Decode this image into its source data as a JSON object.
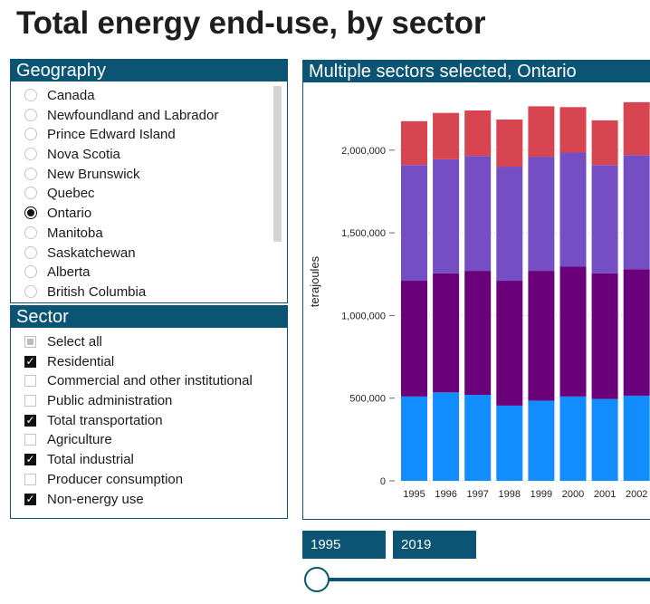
{
  "page": {
    "title": "Total energy end-use, by sector"
  },
  "geography": {
    "header": "Geography",
    "options": [
      {
        "label": "Canada",
        "selected": false
      },
      {
        "label": "Newfoundland and Labrador",
        "selected": false
      },
      {
        "label": "Prince Edward Island",
        "selected": false
      },
      {
        "label": "Nova Scotia",
        "selected": false
      },
      {
        "label": "New Brunswick",
        "selected": false
      },
      {
        "label": "Quebec",
        "selected": false
      },
      {
        "label": "Ontario",
        "selected": true
      },
      {
        "label": "Manitoba",
        "selected": false
      },
      {
        "label": "Saskatchewan",
        "selected": false
      },
      {
        "label": "Alberta",
        "selected": false
      },
      {
        "label": "British Columbia",
        "selected": false
      }
    ]
  },
  "sector": {
    "header": "Sector",
    "options": [
      {
        "label": "Select all",
        "state": "mixed"
      },
      {
        "label": "Residential",
        "state": "checked"
      },
      {
        "label": "Commercial and other institutional",
        "state": "unchecked"
      },
      {
        "label": "Public administration",
        "state": "unchecked"
      },
      {
        "label": "Total transportation",
        "state": "checked"
      },
      {
        "label": "Agriculture",
        "state": "unchecked"
      },
      {
        "label": "Total industrial",
        "state": "checked"
      },
      {
        "label": "Producer consumption",
        "state": "unchecked"
      },
      {
        "label": "Non-energy use",
        "state": "checked"
      }
    ]
  },
  "time_range": {
    "start": "1995",
    "end": "2019"
  },
  "chart_data": {
    "type": "bar",
    "stacked": true,
    "title": "Multiple sectors selected, Ontario",
    "xlabel": "",
    "ylabel": "terajoules",
    "ylim": [
      0,
      2300000
    ],
    "yticks": [
      0,
      500000,
      1000000,
      1500000,
      2000000
    ],
    "ytick_labels": [
      "0",
      "500,000",
      "1,000,000",
      "1,500,000",
      "2,000,000"
    ],
    "categories": [
      "1995",
      "1996",
      "1997",
      "1998",
      "1999",
      "2000",
      "2001",
      "2002"
    ],
    "series": [
      {
        "name": "Residential",
        "color": "#118dff",
        "values": [
          510000,
          535000,
          520000,
          455000,
          485000,
          510000,
          495000,
          515000
        ]
      },
      {
        "name": "Total industrial",
        "color": "#6b007b",
        "values": [
          700000,
          720000,
          750000,
          755000,
          785000,
          785000,
          760000,
          765000
        ]
      },
      {
        "name": "Total transportation",
        "color": "#744ec2",
        "values": [
          700000,
          690000,
          695000,
          690000,
          690000,
          690000,
          655000,
          690000
        ]
      },
      {
        "name": "Non-energy use",
        "color": "#d64550",
        "values": [
          265000,
          280000,
          275000,
          285000,
          305000,
          275000,
          270000,
          320000
        ]
      }
    ]
  }
}
